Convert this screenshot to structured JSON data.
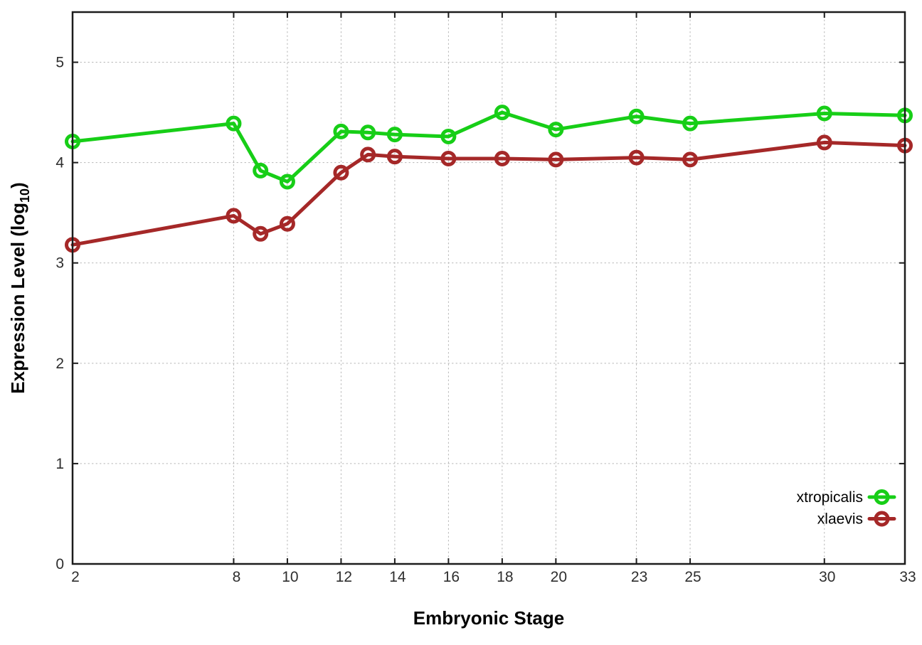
{
  "chart_data": {
    "type": "line",
    "title": "",
    "xlabel": "Embryonic Stage",
    "ylabel": "Expression Level (log10)",
    "ylabel_parts": {
      "pre": "Expression Level (log",
      "sub": "10",
      "post": ")"
    },
    "x": [
      2,
      8,
      9,
      10,
      12,
      13,
      14,
      16,
      18,
      20,
      23,
      25,
      30,
      33
    ],
    "series": [
      {
        "name": "xtropicalis",
        "color": "#17ce17",
        "values": [
          4.21,
          4.39,
          3.92,
          3.81,
          4.31,
          4.3,
          4.28,
          4.26,
          4.5,
          4.33,
          4.46,
          4.39,
          4.49,
          4.47
        ]
      },
      {
        "name": "xlaevis",
        "color": "#a52828",
        "values": [
          3.18,
          3.47,
          3.29,
          3.39,
          3.9,
          4.08,
          4.06,
          4.04,
          4.04,
          4.03,
          4.05,
          4.03,
          4.2,
          4.17
        ]
      }
    ],
    "xlim": [
      2,
      33
    ],
    "ylim": [
      0,
      5.5
    ],
    "xticks": [
      2,
      8,
      10,
      12,
      14,
      16,
      18,
      20,
      23,
      25,
      30,
      33
    ],
    "yticks": [
      0,
      1,
      2,
      3,
      4,
      5
    ],
    "grid": true,
    "grid_style": "dotted",
    "legend_position": "inside-right-bottom",
    "colors": {
      "border": "#1c1c1c",
      "grid": "#b5b5b5",
      "tick_text": "#2e2e2e",
      "axis_title_text": "#000000"
    }
  }
}
